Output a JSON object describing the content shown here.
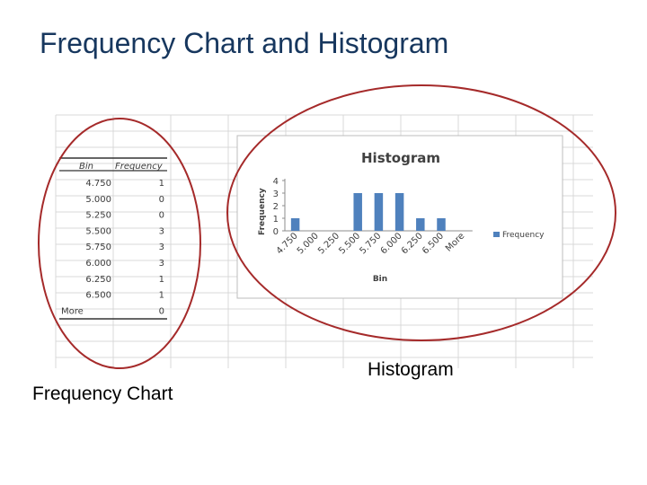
{
  "slide": {
    "title": "Frequency Chart and Histogram",
    "caption_left": "Frequency Chart",
    "caption_right": "Histogram"
  },
  "table": {
    "headers": [
      "Bin",
      "Frequency"
    ],
    "rows": [
      {
        "bin": "4.750",
        "freq": "1"
      },
      {
        "bin": "5.000",
        "freq": "0"
      },
      {
        "bin": "5.250",
        "freq": "0"
      },
      {
        "bin": "5.500",
        "freq": "3"
      },
      {
        "bin": "5.750",
        "freq": "3"
      },
      {
        "bin": "6.000",
        "freq": "3"
      },
      {
        "bin": "6.250",
        "freq": "1"
      },
      {
        "bin": "6.500",
        "freq": "1"
      },
      {
        "bin": "More",
        "freq": "0"
      }
    ]
  },
  "colors": {
    "bar": "#4f81bd",
    "ellipse": "#a52a2a",
    "title": "#17375e",
    "grid": "#d9d9d9"
  },
  "chart_data": {
    "type": "bar",
    "title": "Histogram",
    "xlabel": "Bin",
    "ylabel": "Frequency",
    "categories": [
      "4.750",
      "5.000",
      "5.250",
      "5.500",
      "5.750",
      "6.000",
      "6.250",
      "6.500",
      "More"
    ],
    "series": [
      {
        "name": "Frequency",
        "values": [
          1,
          0,
          0,
          3,
          3,
          3,
          1,
          1,
          0
        ]
      }
    ],
    "ylim": [
      0,
      4
    ],
    "yticks": [
      "0",
      "1",
      "2",
      "3",
      "4"
    ],
    "legend": "right",
    "grid": false
  }
}
